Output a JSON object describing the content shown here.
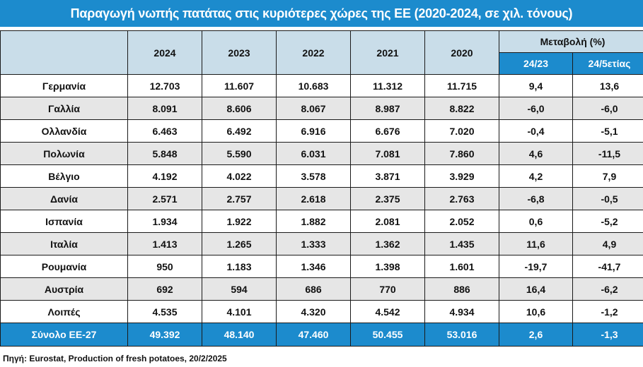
{
  "title": "Παραγωγή νωπής πατάτας στις κυριότερες χώρες της ΕΕ (2020-2024, σε χιλ. τόνους)",
  "source": "Πηγή: Eurostat, Production of fresh potatoes, 20/2/2025",
  "colors": {
    "header_blue": "#1c8bcd",
    "header_light": "#c9dde9",
    "row_gray": "#e6e6e6"
  },
  "chart_data": {
    "type": "table",
    "title": "Παραγωγή νωπής πατάτας στις κυριότερες χώρες της ΕΕ (2020-2024, σε χιλ. τόνους)",
    "year_headers": [
      "2024",
      "2023",
      "2022",
      "2021",
      "2020"
    ],
    "change_header": "Μεταβολή (%)",
    "change_subheaders": [
      "24/23",
      "24/5ετίας"
    ],
    "rows": [
      {
        "country": "Γερμανία",
        "values": [
          "12.703",
          "11.607",
          "10.683",
          "11.312",
          "11.715"
        ],
        "changes": [
          "9,4",
          "13,6"
        ]
      },
      {
        "country": "Γαλλία",
        "values": [
          "8.091",
          "8.606",
          "8.067",
          "8.987",
          "8.822"
        ],
        "changes": [
          "-6,0",
          "-6,0"
        ]
      },
      {
        "country": "Ολλανδία",
        "values": [
          "6.463",
          "6.492",
          "6.916",
          "6.676",
          "7.020"
        ],
        "changes": [
          "-0,4",
          "-5,1"
        ]
      },
      {
        "country": "Πολωνία",
        "values": [
          "5.848",
          "5.590",
          "6.031",
          "7.081",
          "7.860"
        ],
        "changes": [
          "4,6",
          "-11,5"
        ]
      },
      {
        "country": "Βέλγιο",
        "values": [
          "4.192",
          "4.022",
          "3.578",
          "3.871",
          "3.929"
        ],
        "changes": [
          "4,2",
          "7,9"
        ]
      },
      {
        "country": "Δανία",
        "values": [
          "2.571",
          "2.757",
          "2.618",
          "2.375",
          "2.763"
        ],
        "changes": [
          "-6,8",
          "-0,5"
        ]
      },
      {
        "country": "Ισπανία",
        "values": [
          "1.934",
          "1.922",
          "1.882",
          "2.081",
          "2.052"
        ],
        "changes": [
          "0,6",
          "-5,2"
        ]
      },
      {
        "country": "Ιταλία",
        "values": [
          "1.413",
          "1.265",
          "1.333",
          "1.362",
          "1.435"
        ],
        "changes": [
          "11,6",
          "4,9"
        ]
      },
      {
        "country": "Ρουμανία",
        "values": [
          "950",
          "1.183",
          "1.346",
          "1.398",
          "1.601"
        ],
        "changes": [
          "-19,7",
          "-41,7"
        ]
      },
      {
        "country": "Αυστρία",
        "values": [
          "692",
          "594",
          "686",
          "770",
          "886"
        ],
        "changes": [
          "16,4",
          "-6,2"
        ]
      },
      {
        "country": "Λοιπές",
        "values": [
          "4.535",
          "4.101",
          "4.320",
          "4.542",
          "4.934"
        ],
        "changes": [
          "10,6",
          "-1,2"
        ]
      }
    ],
    "total": {
      "country": "Σύνολο ΕΕ-27",
      "values": [
        "49.392",
        "48.140",
        "47.460",
        "50.455",
        "53.016"
      ],
      "changes": [
        "2,6",
        "-1,3"
      ]
    }
  }
}
